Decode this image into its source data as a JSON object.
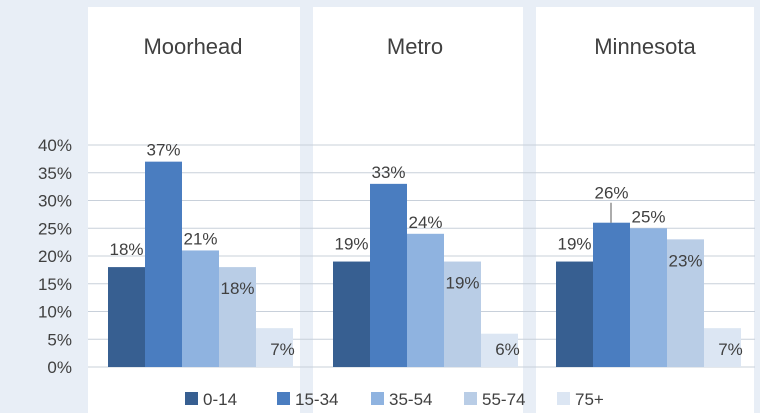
{
  "chart_data": {
    "type": "bar",
    "title": "",
    "xlabel": "",
    "ylabel": "",
    "ylim": [
      0,
      40
    ],
    "yticks": [
      "0%",
      "5%",
      "10%",
      "15%",
      "20%",
      "25%",
      "30%",
      "35%",
      "40%"
    ],
    "grid": true,
    "legend_position": "bottom",
    "categories": [
      "Moorhead",
      "Metro",
      "Minnesota"
    ],
    "series": [
      {
        "name": "0-14",
        "values": [
          18,
          19,
          19
        ],
        "labels": [
          "18%",
          "19%",
          "19%"
        ],
        "color": "#375f91"
      },
      {
        "name": "15-34",
        "values": [
          37,
          33,
          26
        ],
        "labels": [
          "37%",
          "33%",
          "26%"
        ],
        "color": "#4a7dc0"
      },
      {
        "name": "35-54",
        "values": [
          21,
          24,
          25
        ],
        "labels": [
          "21%",
          "24%",
          "25%"
        ],
        "color": "#8fb3e0"
      },
      {
        "name": "55-74",
        "values": [
          18,
          19,
          23
        ],
        "labels": [
          "18%",
          "19%",
          "23%"
        ],
        "color": "#b9cde6"
      },
      {
        "name": "75+",
        "values": [
          7,
          6,
          7
        ],
        "labels": [
          "7%",
          "6%",
          "7%"
        ],
        "color": "#dce6f3"
      }
    ]
  }
}
